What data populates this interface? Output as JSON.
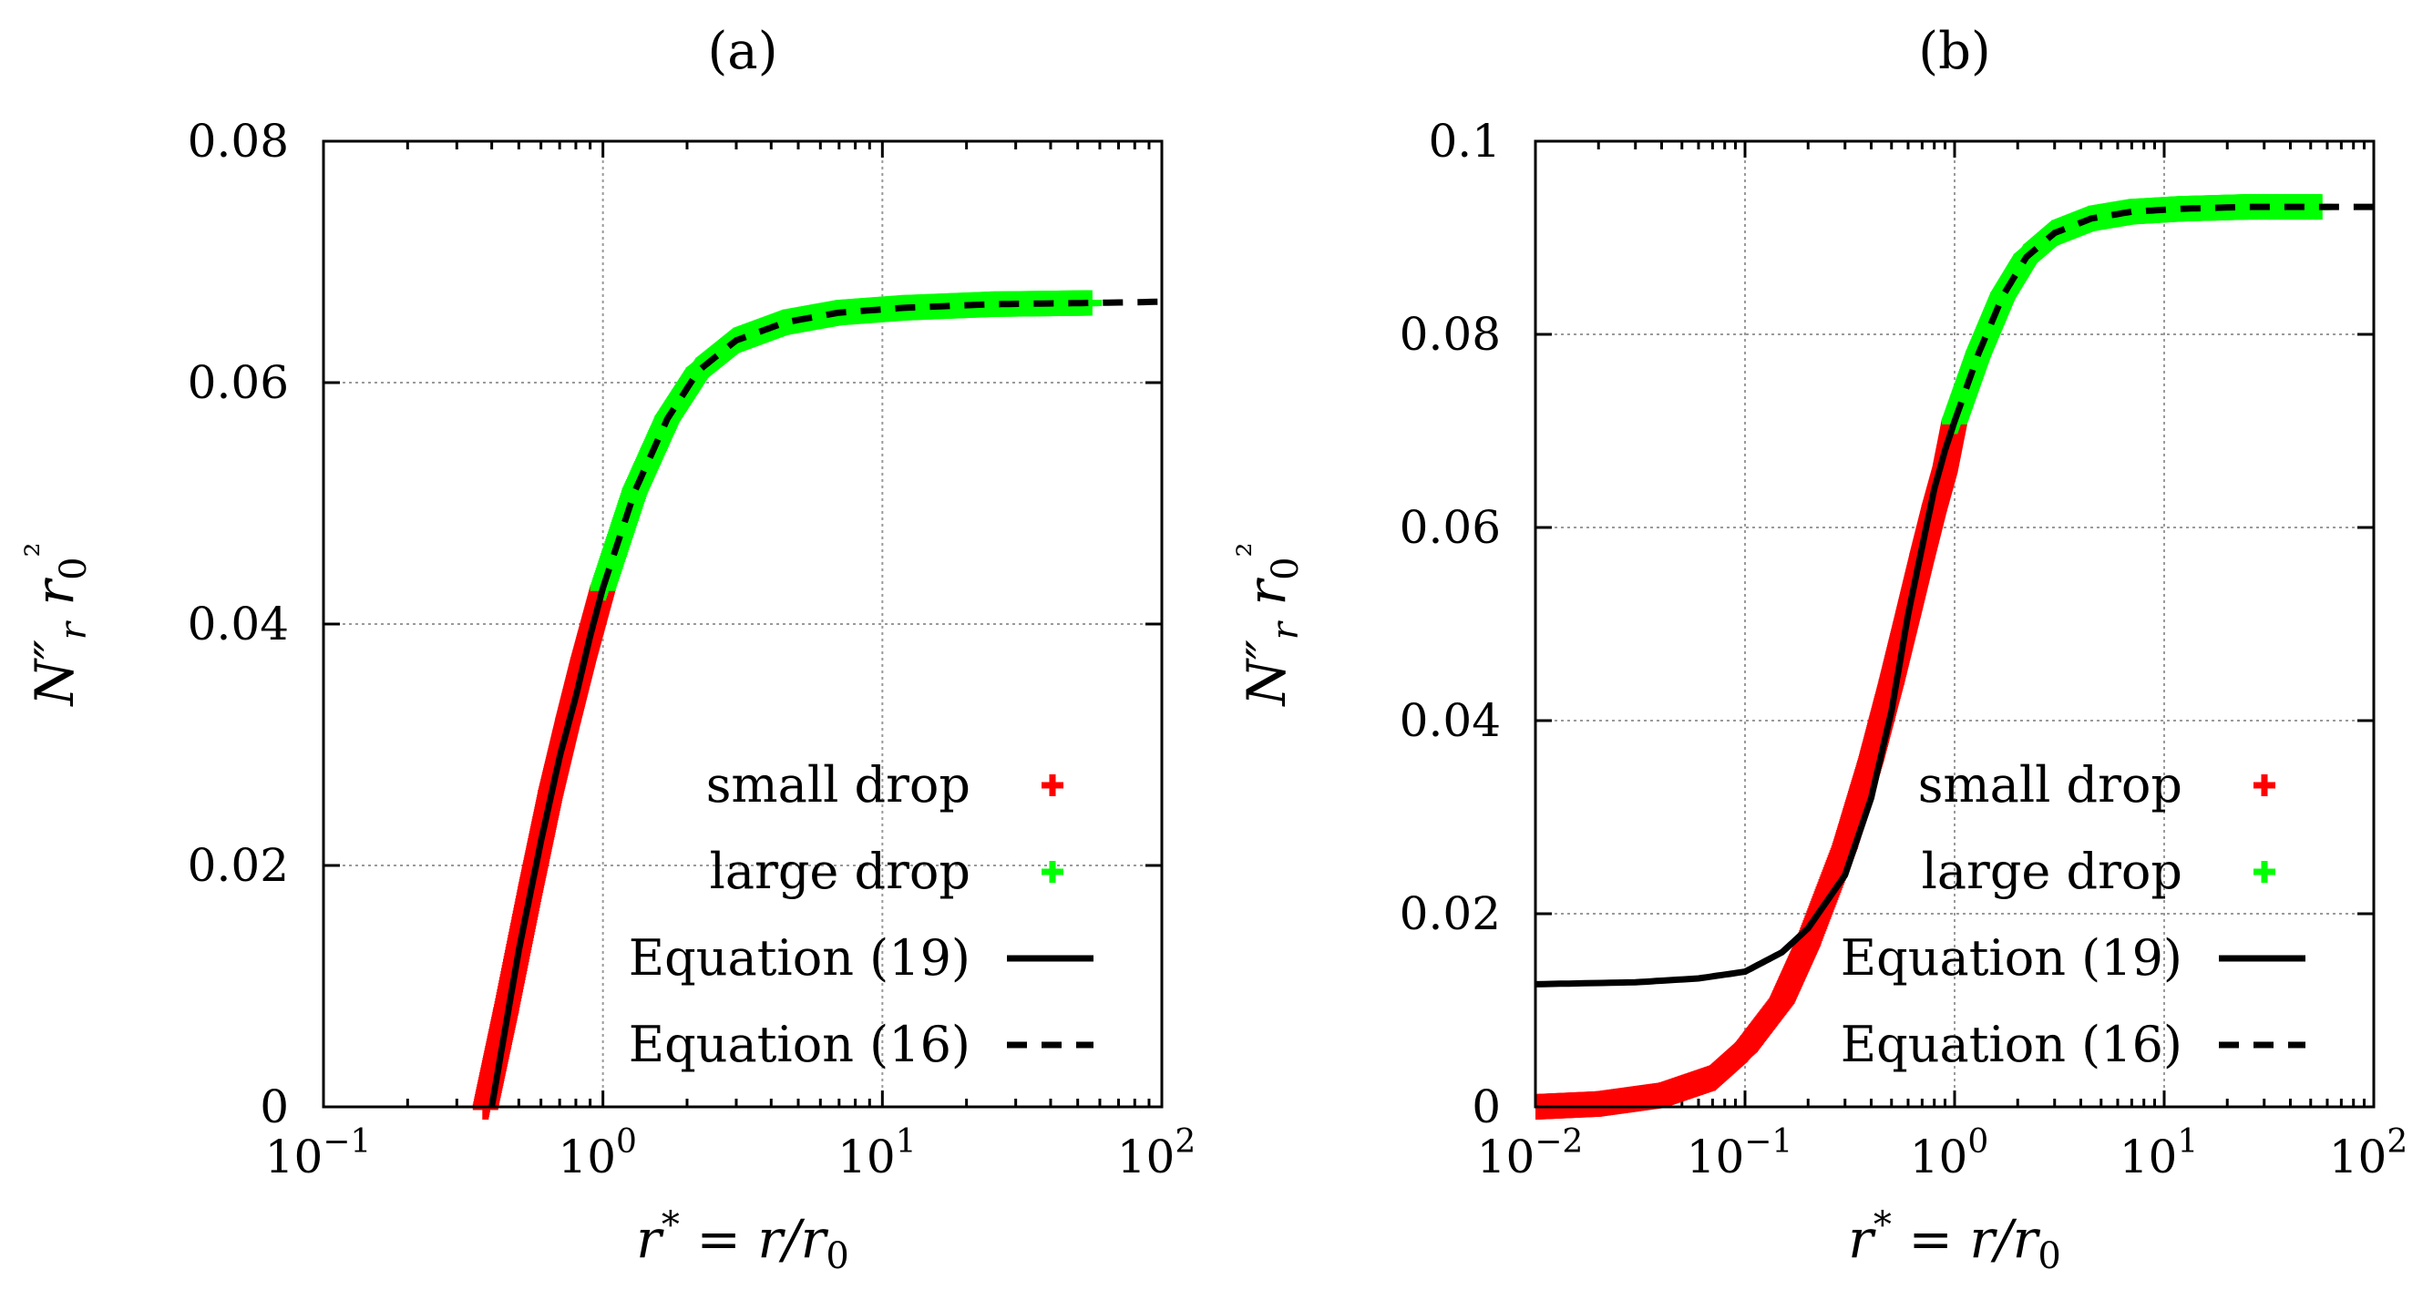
{
  "chart_data": [
    {
      "type": "line",
      "panel_label": "(a)",
      "xscale": "log",
      "xlim": [
        0.1,
        100
      ],
      "ylim": [
        0,
        0.08
      ],
      "xticks": [
        0.1,
        1,
        10,
        100
      ],
      "xtick_labels": [
        {
          "base": "10",
          "exp": "−1"
        },
        {
          "base": "10",
          "exp": "0"
        },
        {
          "base": "10",
          "exp": "1"
        },
        {
          "base": "10",
          "exp": "2"
        }
      ],
      "yticks": [
        0,
        0.02,
        0.04,
        0.06,
        0.08
      ],
      "ytick_labels": [
        "0",
        "0.02",
        "0.04",
        "0.06",
        "0.08"
      ],
      "xlabel": "r* = r/r0",
      "ylabel": "N″r r0²",
      "legend": [
        "small drop",
        "large drop",
        "Equation (19)",
        "Equation (16)"
      ],
      "series": [
        {
          "name": "small drop",
          "style": "markers",
          "color": "#ff0000",
          "x": [
            0.38,
            0.45,
            0.55,
            0.65,
            0.75,
            0.85,
            1.0
          ],
          "y": [
            0.0,
            0.008,
            0.018,
            0.026,
            0.032,
            0.037,
            0.043
          ]
        },
        {
          "name": "large drop",
          "style": "markers",
          "color": "#00ff00",
          "x": [
            1.0,
            1.3,
            1.7,
            2.2,
            3.0,
            4.5,
            7,
            12,
            25,
            55
          ],
          "y": [
            0.043,
            0.051,
            0.057,
            0.061,
            0.0635,
            0.065,
            0.0658,
            0.0662,
            0.0665,
            0.0666
          ]
        },
        {
          "name": "Equation (19)",
          "style": "solid",
          "color": "#000000",
          "x": [
            0.4,
            0.5,
            0.6,
            0.7,
            0.8,
            0.9,
            1.0
          ],
          "y": [
            0.0,
            0.013,
            0.022,
            0.029,
            0.034,
            0.039,
            0.043
          ]
        },
        {
          "name": "Equation (16)",
          "style": "dashed",
          "color": "#000000",
          "x": [
            1.0,
            1.3,
            1.7,
            2.2,
            3.0,
            4.5,
            7,
            12,
            25,
            55,
            100
          ],
          "y": [
            0.043,
            0.051,
            0.057,
            0.061,
            0.0635,
            0.065,
            0.0658,
            0.0662,
            0.0665,
            0.0666,
            0.0667
          ]
        }
      ]
    },
    {
      "type": "line",
      "panel_label": "(b)",
      "xscale": "log",
      "xlim": [
        0.01,
        100
      ],
      "ylim": [
        0,
        0.1
      ],
      "xticks": [
        0.01,
        0.1,
        1,
        10,
        100
      ],
      "xtick_labels": [
        {
          "base": "10",
          "exp": "−2"
        },
        {
          "base": "10",
          "exp": "−1"
        },
        {
          "base": "10",
          "exp": "0"
        },
        {
          "base": "10",
          "exp": "1"
        },
        {
          "base": "10",
          "exp": "2"
        }
      ],
      "yticks": [
        0,
        0.02,
        0.04,
        0.06,
        0.08,
        0.1
      ],
      "ytick_labels": [
        "0",
        "0.02",
        "0.04",
        "0.06",
        "0.08",
        "0.1"
      ],
      "xlabel": "r* = r/r0",
      "ylabel": "N″r r0²",
      "legend": [
        "small drop",
        "large drop",
        "Equation (19)",
        "Equation (16)"
      ],
      "series": [
        {
          "name": "small drop",
          "style": "markers",
          "color": "#ff0000",
          "x": [
            0.01,
            0.02,
            0.04,
            0.07,
            0.1,
            0.15,
            0.2,
            0.3,
            0.4,
            0.5,
            0.6,
            0.7,
            0.8,
            0.9,
            1.0
          ],
          "y": [
            0.0,
            0.0003,
            0.0012,
            0.003,
            0.006,
            0.011,
            0.017,
            0.027,
            0.036,
            0.044,
            0.051,
            0.057,
            0.062,
            0.066,
            0.071
          ]
        },
        {
          "name": "large drop",
          "style": "markers",
          "color": "#00ff00",
          "x": [
            1.0,
            1.3,
            1.7,
            2.2,
            3.0,
            4.5,
            7,
            12,
            25,
            55
          ],
          "y": [
            0.071,
            0.078,
            0.084,
            0.088,
            0.0905,
            0.092,
            0.0927,
            0.093,
            0.0932,
            0.0932
          ]
        },
        {
          "name": "Equation (19)",
          "style": "solid",
          "color": "#000000",
          "x": [
            0.01,
            0.03,
            0.06,
            0.1,
            0.15,
            0.2,
            0.3,
            0.4,
            0.5,
            0.6,
            0.7,
            0.8,
            0.9,
            1.0
          ],
          "y": [
            0.0127,
            0.0129,
            0.0133,
            0.014,
            0.016,
            0.0185,
            0.024,
            0.032,
            0.041,
            0.051,
            0.058,
            0.064,
            0.068,
            0.071
          ]
        },
        {
          "name": "Equation (16)",
          "style": "dashed",
          "color": "#000000",
          "x": [
            1.0,
            1.3,
            1.7,
            2.2,
            3.0,
            4.5,
            7,
            12,
            25,
            55,
            100
          ],
          "y": [
            0.071,
            0.078,
            0.084,
            0.088,
            0.0905,
            0.092,
            0.0927,
            0.093,
            0.0932,
            0.0932,
            0.0932
          ]
        }
      ]
    }
  ]
}
